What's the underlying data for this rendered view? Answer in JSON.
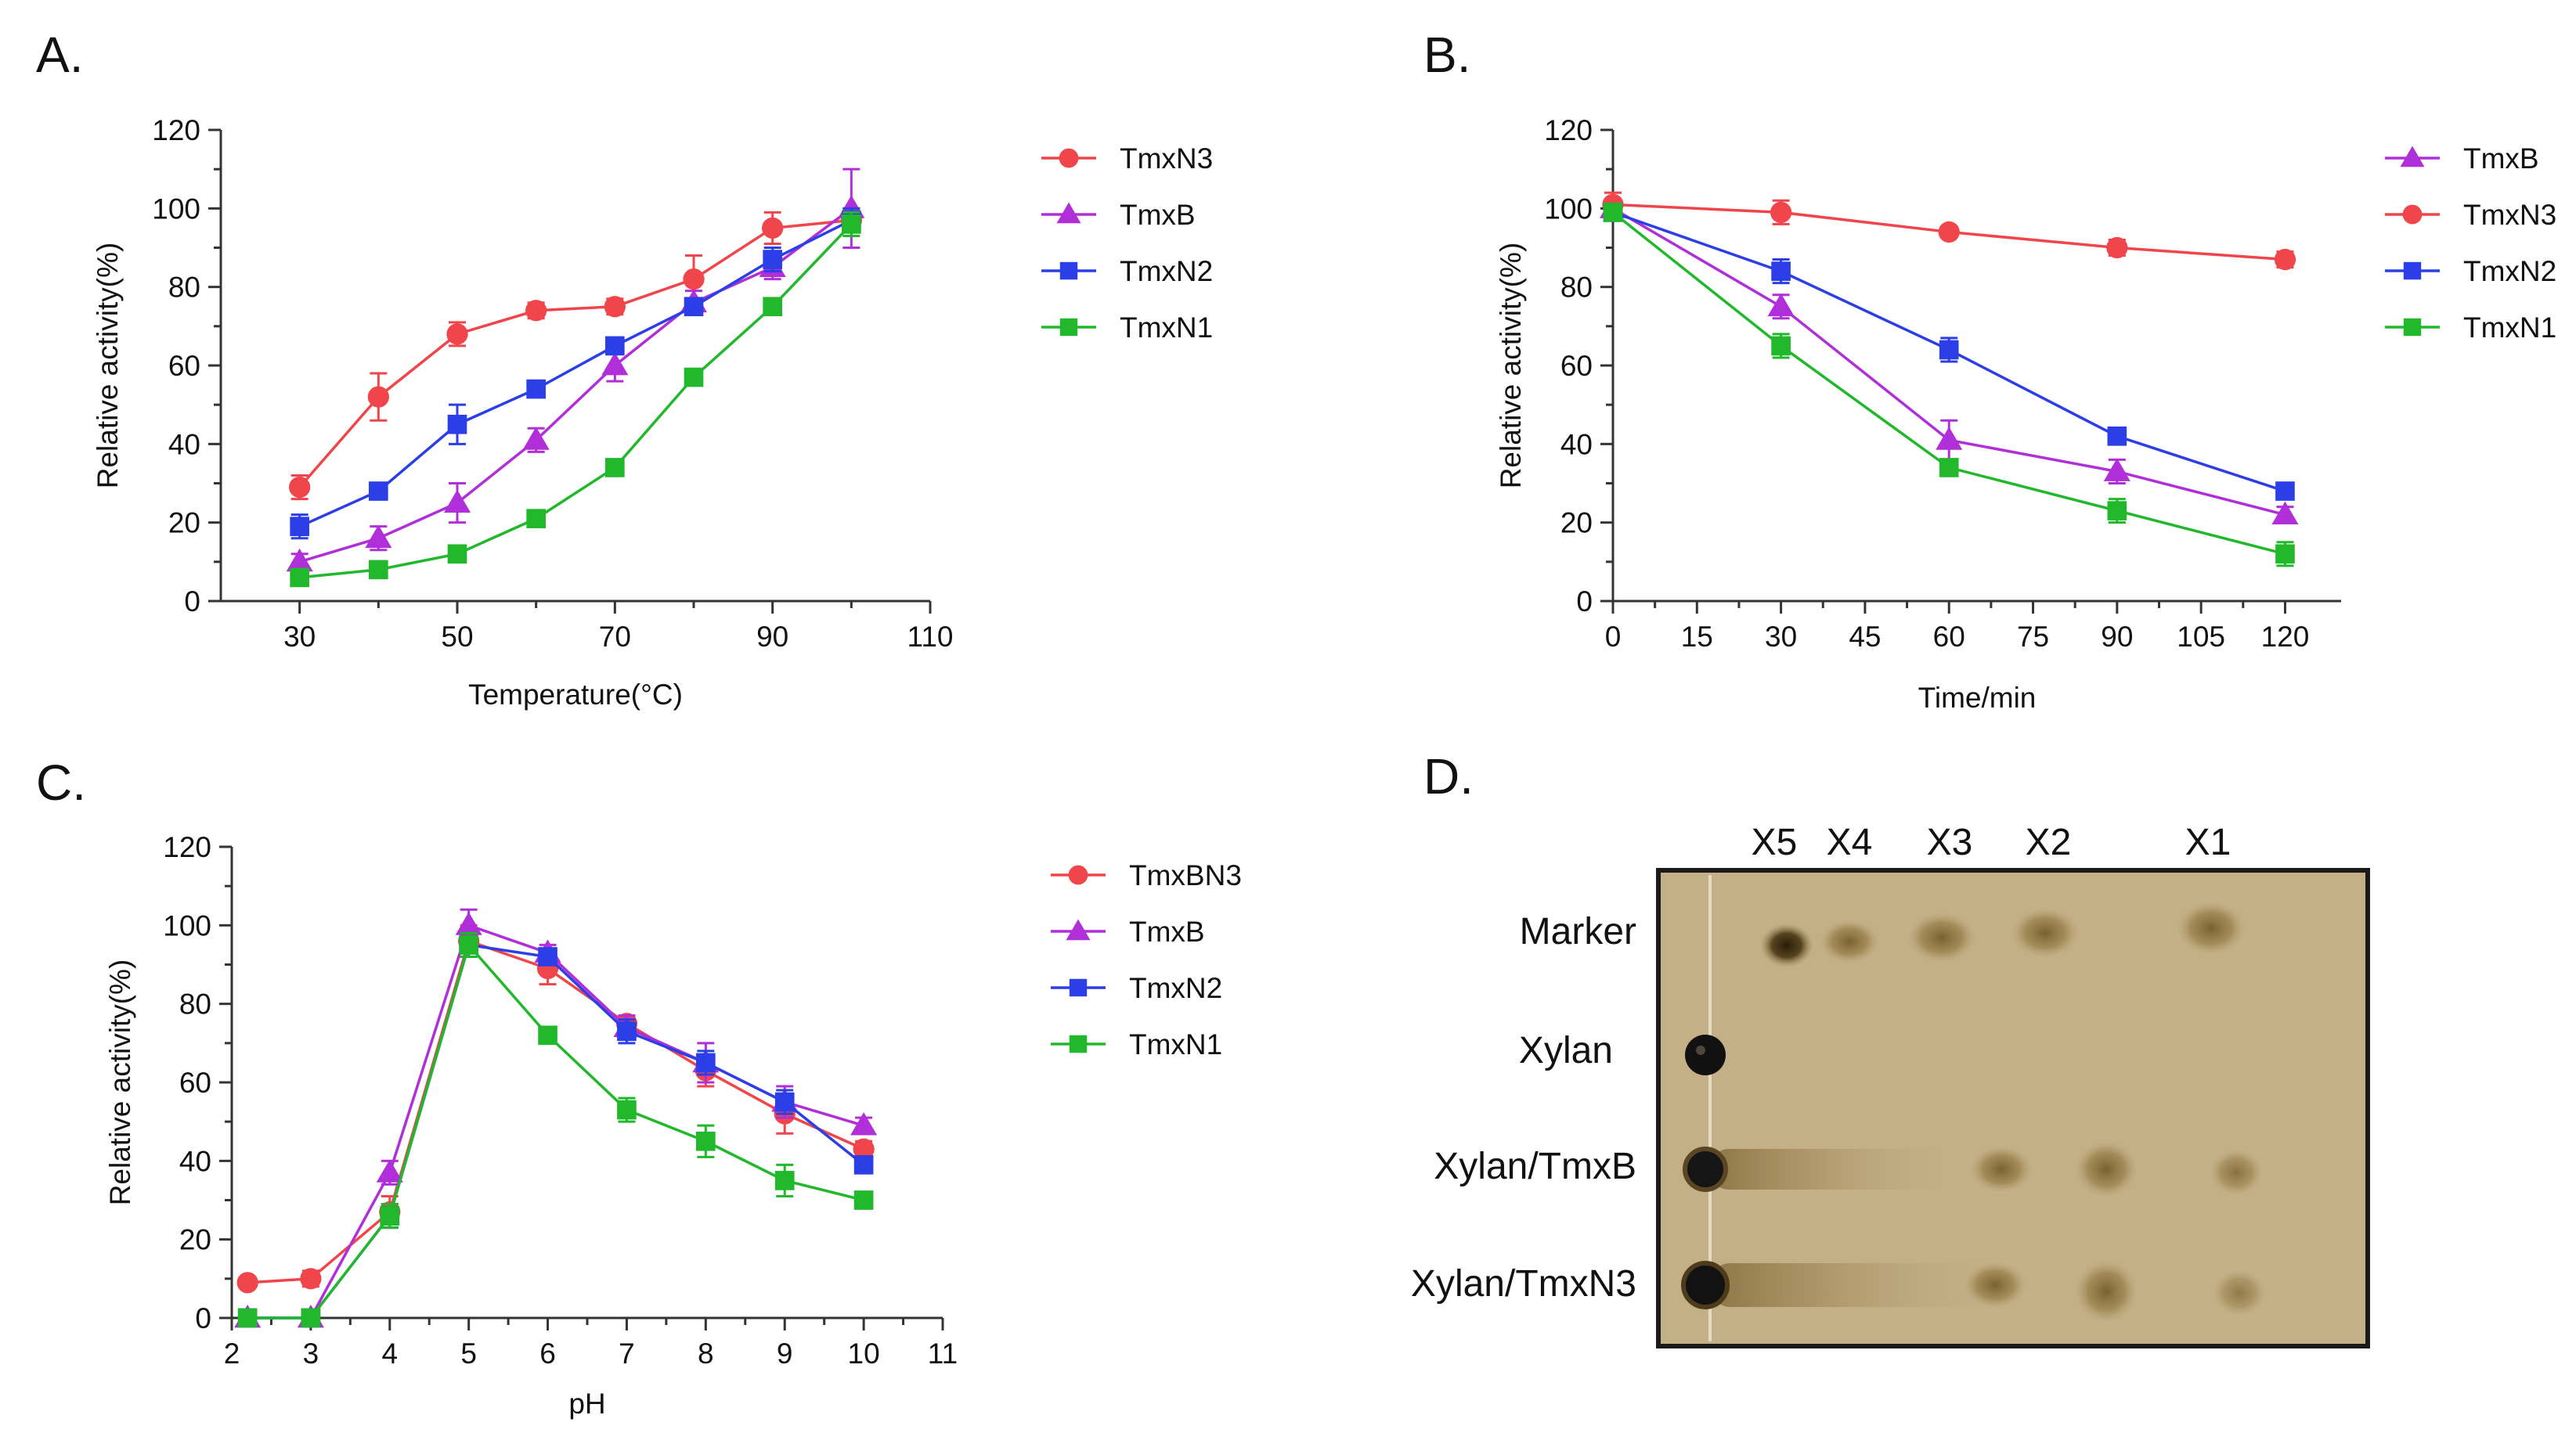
{
  "panels": {
    "A": "A.",
    "B": "B.",
    "C": "C.",
    "D": "D."
  },
  "chart_data": [
    {
      "panel": "A",
      "type": "line",
      "xlabel": "Temperature(°C)",
      "ylabel": "Relative activity(%)",
      "xlim": [
        20,
        110
      ],
      "ylim": [
        0,
        120
      ],
      "xticks": [
        30,
        50,
        70,
        90,
        110
      ],
      "yticks": [
        0,
        20,
        40,
        60,
        80,
        100,
        120
      ],
      "legend_position": "right",
      "series": [
        {
          "name": "TmxN3",
          "color": "#f0454a",
          "marker": "circle",
          "x": [
            30,
            40,
            50,
            60,
            70,
            80,
            90,
            100
          ],
          "values": [
            29,
            52,
            68,
            74,
            75,
            82,
            95,
            97
          ],
          "errors": [
            3,
            6,
            3,
            2,
            2,
            6,
            4,
            3
          ]
        },
        {
          "name": "TmxB",
          "color": "#b02fd8",
          "marker": "triangle",
          "x": [
            30,
            40,
            50,
            60,
            70,
            80,
            90,
            100
          ],
          "values": [
            10,
            16,
            25,
            41,
            60,
            76,
            85,
            100
          ],
          "errors": [
            2,
            3,
            5,
            3,
            4,
            3,
            3,
            10
          ]
        },
        {
          "name": "TmxN2",
          "color": "#2c3ee6",
          "marker": "square",
          "x": [
            30,
            40,
            50,
            60,
            70,
            80,
            90,
            100
          ],
          "values": [
            19,
            28,
            45,
            54,
            65,
            75,
            87,
            97
          ],
          "errors": [
            3,
            2,
            5,
            2,
            2,
            2,
            3,
            3
          ]
        },
        {
          "name": "TmxN1",
          "color": "#22b82c",
          "marker": "square",
          "x": [
            30,
            40,
            50,
            60,
            70,
            80,
            90,
            100
          ],
          "values": [
            6,
            8,
            12,
            21,
            34,
            57,
            75,
            96
          ],
          "errors": [
            1,
            1,
            2,
            1,
            1,
            1,
            2,
            3
          ]
        }
      ]
    },
    {
      "panel": "B",
      "type": "line",
      "xlabel": "Time/min",
      "ylabel": "Relative activity(%)",
      "xlim": [
        0,
        130
      ],
      "ylim": [
        0,
        120
      ],
      "xticks": [
        0,
        15,
        30,
        45,
        60,
        75,
        90,
        105,
        120
      ],
      "yticks": [
        0,
        20,
        40,
        60,
        80,
        100,
        120
      ],
      "legend_position": "right",
      "series": [
        {
          "name": "TmxB",
          "color": "#b02fd8",
          "marker": "triangle",
          "x": [
            0,
            30,
            60,
            90,
            120
          ],
          "values": [
            100,
            75,
            41,
            33,
            22
          ],
          "errors": [
            2,
            3,
            5,
            3,
            2
          ]
        },
        {
          "name": "TmxN3",
          "color": "#f0454a",
          "marker": "circle",
          "x": [
            0,
            30,
            60,
            90,
            120
          ],
          "values": [
            101,
            99,
            94,
            90,
            87
          ],
          "errors": [
            3,
            3,
            1,
            2,
            2
          ]
        },
        {
          "name": "TmxN2",
          "color": "#2c3ee6",
          "marker": "square",
          "x": [
            0,
            30,
            60,
            90,
            120
          ],
          "values": [
            99,
            84,
            64,
            42,
            28
          ],
          "errors": [
            2,
            3,
            3,
            1,
            1
          ]
        },
        {
          "name": "TmxN1",
          "color": "#22b82c",
          "marker": "square",
          "x": [
            0,
            30,
            60,
            90,
            120
          ],
          "values": [
            99,
            65,
            34,
            23,
            12
          ],
          "errors": [
            2,
            3,
            2,
            3,
            3
          ]
        }
      ]
    },
    {
      "panel": "C",
      "type": "line",
      "xlabel": "pH",
      "ylabel": "Relative activity(%)",
      "xlim": [
        2,
        11
      ],
      "ylim": [
        0,
        120
      ],
      "xticks": [
        2,
        3,
        4,
        5,
        6,
        7,
        8,
        9,
        10,
        11
      ],
      "yticks": [
        0,
        20,
        40,
        60,
        80,
        100,
        120
      ],
      "legend_position": "right",
      "series": [
        {
          "name": "TmxBN3",
          "color": "#f0454a",
          "marker": "circle",
          "x": [
            2.2,
            3,
            4,
            5,
            6,
            7,
            8,
            9,
            10
          ],
          "values": [
            9,
            10,
            27,
            96,
            89,
            75,
            63,
            52,
            43
          ],
          "errors": [
            1,
            2,
            4,
            4,
            4,
            2,
            4,
            5,
            2
          ]
        },
        {
          "name": "TmxB",
          "color": "#b02fd8",
          "marker": "triangle",
          "x": [
            2.2,
            3,
            4,
            5,
            6,
            7,
            8,
            9,
            10
          ],
          "values": [
            0,
            0,
            37,
            100,
            93,
            74,
            65,
            55,
            49
          ],
          "errors": [
            0,
            0,
            3,
            4,
            2,
            3,
            5,
            4,
            2
          ]
        },
        {
          "name": "TmxN2",
          "color": "#2c3ee6",
          "marker": "square",
          "x": [
            2.2,
            3,
            4,
            5,
            6,
            7,
            8,
            9,
            10
          ],
          "values": [
            0,
            0,
            26,
            95,
            92,
            73,
            65,
            55,
            39
          ],
          "errors": [
            0,
            0,
            3,
            3,
            2,
            3,
            3,
            3,
            2
          ]
        },
        {
          "name": "TmxN1",
          "color": "#22b82c",
          "marker": "square",
          "x": [
            2.2,
            3,
            4,
            5,
            6,
            7,
            8,
            9,
            10
          ],
          "values": [
            0,
            0,
            26,
            95,
            72,
            53,
            45,
            35,
            30
          ],
          "errors": [
            0,
            0,
            3,
            3,
            2,
            3,
            4,
            4,
            2
          ]
        }
      ]
    }
  ],
  "tlc": {
    "columns": [
      "X5",
      "X4",
      "X3",
      "X2",
      "X1"
    ],
    "rows": [
      "Marker",
      "Xylan",
      "Xylan/TmxB",
      "Xylan/TmxN3"
    ]
  }
}
